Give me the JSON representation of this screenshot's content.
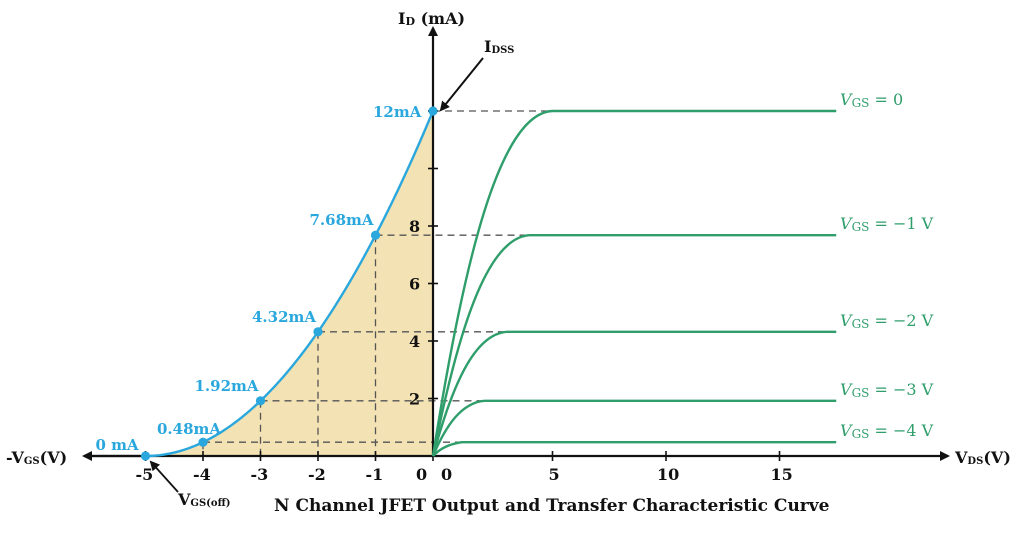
{
  "caption": "N Channel JFET Output and Transfer Characteristic Curve",
  "axes": {
    "y_title_main": "I",
    "y_title_sub": "D",
    "y_title_unit": " (mA)",
    "x_right_main": "V",
    "x_right_sub": "DS",
    "x_right_unit": "(V)",
    "x_left_main": "-V",
    "x_left_sub": "GS",
    "x_left_unit": "(V)",
    "idss_main": "I",
    "idss_sub": "DSS",
    "vgsoff_main": "V",
    "vgsoff_sub": "GS(off)"
  },
  "colors": {
    "transfer_curve": "#2aa7dd",
    "output_curves": "#2f9e6b",
    "fill": "#f3e2b3",
    "axis": "#111111",
    "dash": "#555555"
  },
  "chart_data": [
    {
      "type": "line",
      "name": "transfer",
      "xlabel": "-VGS(V)",
      "ylabel": "ID (mA)",
      "x_ticks": [
        "-5",
        "-4",
        "-3",
        "-2",
        "-1",
        "0"
      ],
      "y_ticks": [
        "2",
        "4",
        "6",
        "8"
      ],
      "points": [
        {
          "vgs": -5,
          "id": 0,
          "label": "0 mA"
        },
        {
          "vgs": -4,
          "id": 0.48,
          "label": "0.48mA"
        },
        {
          "vgs": -3,
          "id": 1.92,
          "label": "1.92mA"
        },
        {
          "vgs": -2,
          "id": 4.32,
          "label": "4.32mA"
        },
        {
          "vgs": -1,
          "id": 7.68,
          "label": "7.68mA"
        },
        {
          "vgs": 0,
          "id": 12,
          "label": "12mA"
        }
      ],
      "xlim": [
        -5,
        0
      ],
      "ylim": [
        0,
        14
      ]
    },
    {
      "type": "line",
      "name": "output",
      "xlabel": "VDS(V)",
      "ylabel": "ID (mA)",
      "x_ticks": [
        "0",
        "5",
        "10",
        "15"
      ],
      "xlim": [
        0,
        17.5
      ],
      "series": [
        {
          "label": "VGS = 0",
          "label_main": "V",
          "label_sub": "GS",
          "label_rest": " = 0",
          "saturation_id": 12,
          "knee_vds": 5
        },
        {
          "label": "VGS = −1 V",
          "label_main": "V",
          "label_sub": "GS",
          "label_rest": " = −1 V",
          "saturation_id": 7.68,
          "knee_vds": 4
        },
        {
          "label": "VGS = −2 V",
          "label_main": "V",
          "label_sub": "GS",
          "label_rest": " = −2 V",
          "saturation_id": 4.32,
          "knee_vds": 3
        },
        {
          "label": "VGS = −3 V",
          "label_main": "V",
          "label_sub": "GS",
          "label_rest": " = −3 V",
          "saturation_id": 1.92,
          "knee_vds": 2
        },
        {
          "label": "VGS = −4 V",
          "label_main": "V",
          "label_sub": "GS",
          "label_rest": " = −4 V",
          "saturation_id": 0.48,
          "knee_vds": 1
        }
      ]
    }
  ]
}
